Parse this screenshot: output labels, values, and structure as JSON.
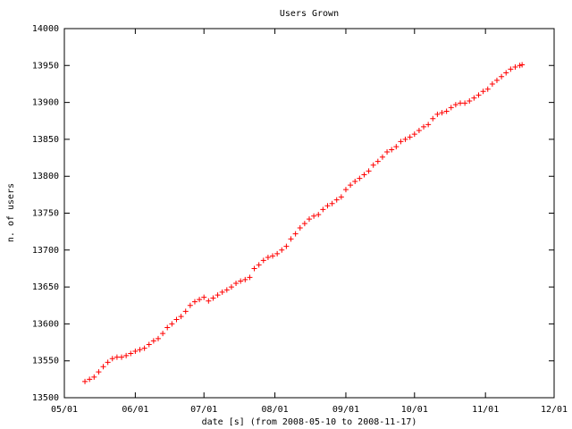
{
  "chart_data": {
    "type": "scatter",
    "title": "Users Grown",
    "xlabel": "date [s] (from 2008-05-10 to 2008-11-17)",
    "ylabel": "n. of users",
    "x": [
      "05/10",
      "05/12",
      "05/14",
      "05/16",
      "05/18",
      "05/20",
      "05/22",
      "05/24",
      "05/26",
      "05/28",
      "05/30",
      "06/01",
      "06/03",
      "06/05",
      "06/07",
      "06/09",
      "06/11",
      "06/13",
      "06/15",
      "06/17",
      "06/19",
      "06/21",
      "06/23",
      "06/25",
      "06/27",
      "06/29",
      "07/01",
      "07/03",
      "07/05",
      "07/07",
      "07/09",
      "07/11",
      "07/13",
      "07/15",
      "07/17",
      "07/19",
      "07/21",
      "07/23",
      "07/25",
      "07/27",
      "07/29",
      "07/31",
      "08/02",
      "08/04",
      "08/06",
      "08/08",
      "08/10",
      "08/12",
      "08/14",
      "08/16",
      "08/18",
      "08/20",
      "08/22",
      "08/24",
      "08/26",
      "08/28",
      "08/30",
      "09/01",
      "09/03",
      "09/05",
      "09/07",
      "09/09",
      "09/11",
      "09/13",
      "09/15",
      "09/17",
      "09/19",
      "09/21",
      "09/23",
      "09/25",
      "09/27",
      "09/29",
      "10/01",
      "10/03",
      "10/05",
      "10/07",
      "10/09",
      "10/11",
      "10/13",
      "10/15",
      "10/17",
      "10/19",
      "10/21",
      "10/23",
      "10/25",
      "10/27",
      "10/29",
      "10/31",
      "11/02",
      "11/04",
      "11/06",
      "11/08",
      "11/10",
      "11/12",
      "11/14",
      "11/16",
      "11/17"
    ],
    "series": [
      {
        "color": "#ff0000",
        "values": [
          13522,
          13525,
          13528,
          13535,
          13542,
          13548,
          13553,
          13555,
          13555,
          13557,
          13560,
          13563,
          13565,
          13567,
          13572,
          13577,
          13580,
          13587,
          13595,
          13600,
          13606,
          13610,
          13617,
          13625,
          13630,
          13633,
          13636,
          13631,
          13635,
          13639,
          13643,
          13646,
          13650,
          13655,
          13658,
          13660,
          13663,
          13675,
          13680,
          13686,
          13690,
          13692,
          13695,
          13700,
          13705,
          13715,
          13722,
          13730,
          13736,
          13742,
          13746,
          13748,
          13755,
          13760,
          13763,
          13768,
          13772,
          13782,
          13788,
          13793,
          13797,
          13802,
          13807,
          13815,
          13820,
          13826,
          13833,
          13836,
          13840,
          13847,
          13850,
          13853,
          13857,
          13862,
          13867,
          13870,
          13878,
          13884,
          13886,
          13888,
          13893,
          13897,
          13899,
          13899,
          13902,
          13906,
          13910,
          13915,
          13918,
          13925,
          13930,
          13935,
          13940,
          13945,
          13948,
          13950,
          13951
        ]
      }
    ],
    "xlim": [
      "05/01",
      "12/01"
    ],
    "xticks": [
      "05/01",
      "06/01",
      "07/01",
      "08/01",
      "09/01",
      "10/01",
      "11/01",
      "12/01"
    ],
    "ylim": [
      13500,
      14000
    ],
    "yticks": [
      13500,
      13550,
      13600,
      13650,
      13700,
      13750,
      13800,
      13850,
      13900,
      13950,
      14000
    ]
  }
}
